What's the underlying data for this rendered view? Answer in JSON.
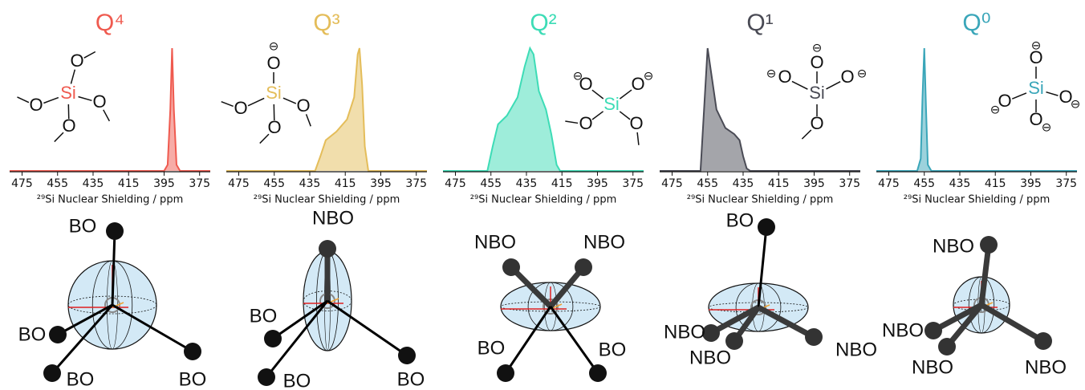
{
  "chart_data": [
    {
      "type": "area",
      "title": "Q⁴",
      "color": "#ef5a4f",
      "xlabel": "²⁹Si Nuclear Shielding / ppm",
      "xlim": [
        482,
        369
      ],
      "ylim": [
        0,
        1
      ],
      "xticks": [
        475,
        455,
        435,
        415,
        395,
        375
      ],
      "x": [
        482,
        395,
        393,
        391.5,
        390.5,
        389.5,
        388,
        386,
        369
      ],
      "values": [
        0,
        0,
        0.05,
        0.5,
        1,
        0.5,
        0.05,
        0,
        0
      ]
    },
    {
      "type": "area",
      "title": "Q³",
      "color": "#e4bd5a",
      "xlabel": "²⁹Si Nuclear Shielding / ppm",
      "xlim": [
        482,
        369
      ],
      "ylim": [
        0,
        1
      ],
      "xticks": [
        475,
        455,
        435,
        415,
        395,
        375
      ],
      "x": [
        482,
        432,
        429,
        426,
        420,
        414,
        410,
        408,
        407,
        405.5,
        404,
        402,
        369
      ],
      "values": [
        0,
        0,
        0.12,
        0.25,
        0.32,
        0.42,
        0.6,
        0.95,
        1,
        0.7,
        0.2,
        0,
        0
      ]
    },
    {
      "type": "area",
      "title": "Q²",
      "color": "#3ddcb6",
      "xlabel": "²⁹Si Nuclear Shielding / ppm",
      "xlim": [
        482,
        369
      ],
      "ylim": [
        0,
        1
      ],
      "xticks": [
        475,
        455,
        435,
        415,
        395,
        375
      ],
      "x": [
        482,
        457,
        454,
        451,
        446,
        440,
        436,
        433,
        431,
        428,
        424,
        421,
        418,
        416,
        369
      ],
      "values": [
        0,
        0,
        0.2,
        0.38,
        0.45,
        0.6,
        0.85,
        1,
        0.95,
        0.65,
        0.5,
        0.3,
        0.05,
        0,
        0
      ]
    },
    {
      "type": "area",
      "title": "Q¹",
      "color": "#4a4b55",
      "xlabel": "²⁹Si Nuclear Shielding / ppm",
      "xlim": [
        482,
        369
      ],
      "ylim": [
        0,
        1
      ],
      "xticks": [
        475,
        455,
        435,
        415,
        395,
        375
      ],
      "x": [
        482,
        459,
        457,
        455,
        453,
        450,
        445,
        440,
        437,
        435,
        433,
        431,
        369
      ],
      "values": [
        0,
        0,
        0.5,
        1,
        0.8,
        0.5,
        0.35,
        0.3,
        0.25,
        0.12,
        0.02,
        0,
        0
      ]
    },
    {
      "type": "area",
      "title": "Q⁰",
      "color": "#3aa6b9",
      "xlabel": "²⁹Si Nuclear Shielding / ppm",
      "xlim": [
        482,
        369
      ],
      "ylim": [
        0,
        1
      ],
      "xticks": [
        475,
        455,
        435,
        415,
        395,
        375
      ],
      "x": [
        482,
        459,
        457,
        456,
        455,
        454,
        453,
        451,
        369
      ],
      "values": [
        0,
        0,
        0.1,
        0.6,
        1,
        0.5,
        0.05,
        0,
        0
      ]
    }
  ],
  "panels": [
    {
      "molecule": {
        "atoms": [
          "Si",
          "O",
          "O",
          "O",
          "O"
        ],
        "charges": []
      },
      "ellipsoid": {
        "labels": [
          "BO",
          "BO",
          "BO",
          "BO"
        ]
      }
    },
    {
      "molecule": {
        "atoms": [
          "Si",
          "O",
          "O",
          "O",
          "O"
        ],
        "charges": [
          "⊖"
        ]
      },
      "ellipsoid": {
        "labels": [
          "NBO",
          "BO",
          "BO",
          "BO"
        ]
      }
    },
    {
      "molecule": {
        "atoms": [
          "Si",
          "O",
          "O",
          "O",
          "O"
        ],
        "charges": [
          "⊖",
          "⊖"
        ]
      },
      "ellipsoid": {
        "labels": [
          "NBO",
          "NBO",
          "BO",
          "BO"
        ]
      }
    },
    {
      "molecule": {
        "atoms": [
          "Si",
          "O",
          "O",
          "O",
          "O"
        ],
        "charges": [
          "⊖",
          "⊖",
          "⊖"
        ]
      },
      "ellipsoid": {
        "labels": [
          "BO",
          "NBO",
          "NBO",
          "NBO"
        ]
      }
    },
    {
      "molecule": {
        "atoms": [
          "Si",
          "O",
          "O",
          "O",
          "O"
        ],
        "charges": [
          "⊖",
          "⊖",
          "⊖",
          "⊖"
        ]
      },
      "ellipsoid": {
        "labels": [
          "NBO",
          "NBO",
          "NBO",
          "NBO"
        ]
      }
    }
  ]
}
